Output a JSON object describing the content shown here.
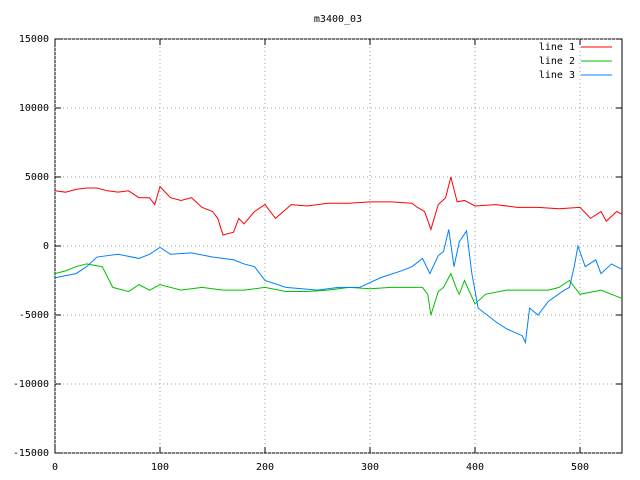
{
  "chart_data": {
    "type": "line",
    "title": "m3400_03",
    "xlim": [
      0,
      540
    ],
    "xticks": [
      0,
      100,
      200,
      300,
      400,
      500
    ],
    "ylim": [
      -15000,
      15000
    ],
    "yticks": [
      -15000,
      -10000,
      -5000,
      0,
      5000,
      10000,
      15000
    ],
    "grid": true,
    "legend": "top-right",
    "series": [
      {
        "name": "line 1",
        "color": "#ff0000",
        "x": [
          0,
          10,
          20,
          30,
          40,
          50,
          60,
          70,
          80,
          90,
          95,
          100,
          110,
          120,
          130,
          140,
          150,
          155,
          160,
          170,
          175,
          180,
          190,
          200,
          210,
          225,
          240,
          260,
          280,
          300,
          320,
          340,
          345,
          352,
          358,
          365,
          372,
          377,
          383,
          390,
          400,
          420,
          440,
          460,
          480,
          500,
          510,
          520,
          525,
          535,
          540
        ],
        "values": [
          4000,
          3900,
          4100,
          4200,
          4200,
          4000,
          3900,
          4000,
          3500,
          3500,
          3000,
          4300,
          3500,
          3300,
          3500,
          2800,
          2500,
          2000,
          800,
          1000,
          2000,
          1600,
          2500,
          3000,
          2000,
          3000,
          2900,
          3100,
          3100,
          3200,
          3200,
          3100,
          2800,
          2500,
          1200,
          3000,
          3500,
          5000,
          3200,
          3300,
          2900,
          3000,
          2800,
          2800,
          2700,
          2800,
          2000,
          2500,
          1800,
          2500,
          2300
        ]
      },
      {
        "name": "line 2",
        "color": "#00c000",
        "x": [
          0,
          10,
          20,
          30,
          45,
          55,
          70,
          80,
          90,
          100,
          120,
          140,
          160,
          180,
          200,
          220,
          240,
          260,
          280,
          300,
          320,
          350,
          355,
          358,
          365,
          370,
          377,
          383,
          385,
          390,
          400,
          410,
          430,
          450,
          470,
          480,
          490,
          500,
          520,
          530,
          540
        ],
        "values": [
          -2000,
          -1800,
          -1500,
          -1300,
          -1500,
          -3000,
          -3300,
          -2800,
          -3200,
          -2800,
          -3200,
          -3000,
          -3200,
          -3200,
          -3000,
          -3300,
          -3300,
          -3200,
          -3000,
          -3100,
          -3000,
          -3000,
          -3500,
          -5000,
          -3300,
          -3000,
          -2000,
          -3200,
          -3500,
          -2500,
          -4200,
          -3500,
          -3200,
          -3200,
          -3200,
          -3000,
          -2500,
          -3500,
          -3200,
          -3500,
          -3800
        ]
      },
      {
        "name": "line 3",
        "color": "#0080ff",
        "x": [
          0,
          20,
          30,
          40,
          60,
          80,
          90,
          100,
          110,
          130,
          150,
          170,
          180,
          190,
          195,
          200,
          220,
          250,
          270,
          290,
          310,
          330,
          340,
          350,
          357,
          365,
          370,
          375,
          380,
          385,
          392,
          397,
          403,
          420,
          430,
          445,
          448,
          452,
          460,
          470,
          485,
          490,
          495,
          498,
          505,
          515,
          520,
          530,
          540
        ],
        "values": [
          -2300,
          -2000,
          -1500,
          -800,
          -600,
          -900,
          -600,
          -100,
          -600,
          -500,
          -800,
          -1000,
          -1300,
          -1500,
          -2000,
          -2500,
          -3000,
          -3200,
          -3000,
          -3000,
          -2300,
          -1800,
          -1500,
          -900,
          -2000,
          -700,
          -400,
          1200,
          -1500,
          300,
          1100,
          -2000,
          -4500,
          -5500,
          -6000,
          -6500,
          -7000,
          -4500,
          -5000,
          -4000,
          -3200,
          -3000,
          -1300,
          0,
          -1500,
          -1000,
          -2000,
          -1300,
          -1700
        ]
      }
    ]
  }
}
